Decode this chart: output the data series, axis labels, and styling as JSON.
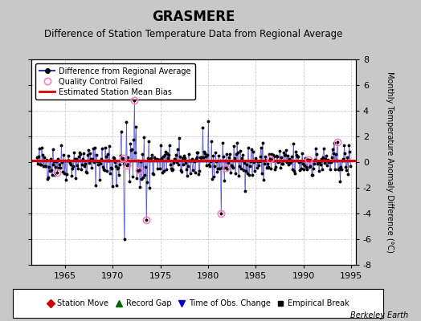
{
  "title": "GRASMERE",
  "subtitle": "Difference of Station Temperature Data from Regional Average",
  "ylabel_right": "Monthly Temperature Anomaly Difference (°C)",
  "xlim": [
    1961.5,
    1995.5
  ],
  "ylim": [
    -8,
    8
  ],
  "yticks": [
    -8,
    -6,
    -4,
    -2,
    0,
    2,
    4,
    6,
    8
  ],
  "xticks": [
    1965,
    1970,
    1975,
    1980,
    1985,
    1990,
    1995
  ],
  "bias_value": 0.1,
  "fig_bg_color": "#c8c8c8",
  "plot_bg_color": "#ffffff",
  "line_color": "#3333cc",
  "bias_color": "#dd0000",
  "qc_color": "#ff80c0",
  "title_fontsize": 12,
  "subtitle_fontsize": 8.5,
  "watermark": "Berkeley Earth",
  "seed": 42,
  "n_months": 396,
  "year_start": 1962,
  "month_start": 1,
  "year_end": 1994,
  "month_end": 12
}
